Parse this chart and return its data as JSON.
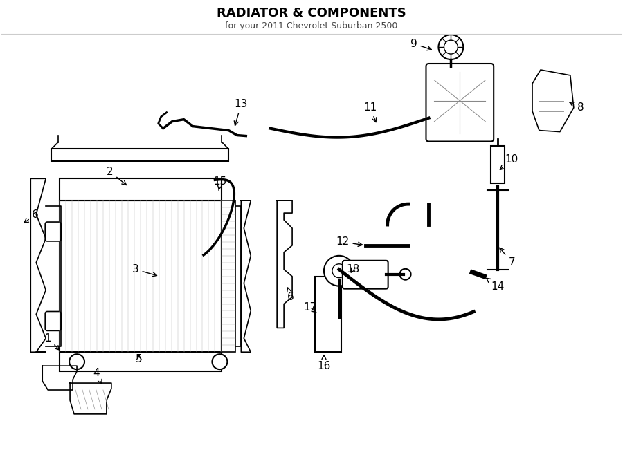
{
  "title": "RADIATOR & COMPONENTS",
  "subtitle": "for your 2011 Chevrolet Suburban 2500",
  "bg_color": "#ffffff",
  "line_color": "#000000",
  "text_color": "#000000",
  "fig_width": 9.0,
  "fig_height": 6.61,
  "dpi": 100
}
